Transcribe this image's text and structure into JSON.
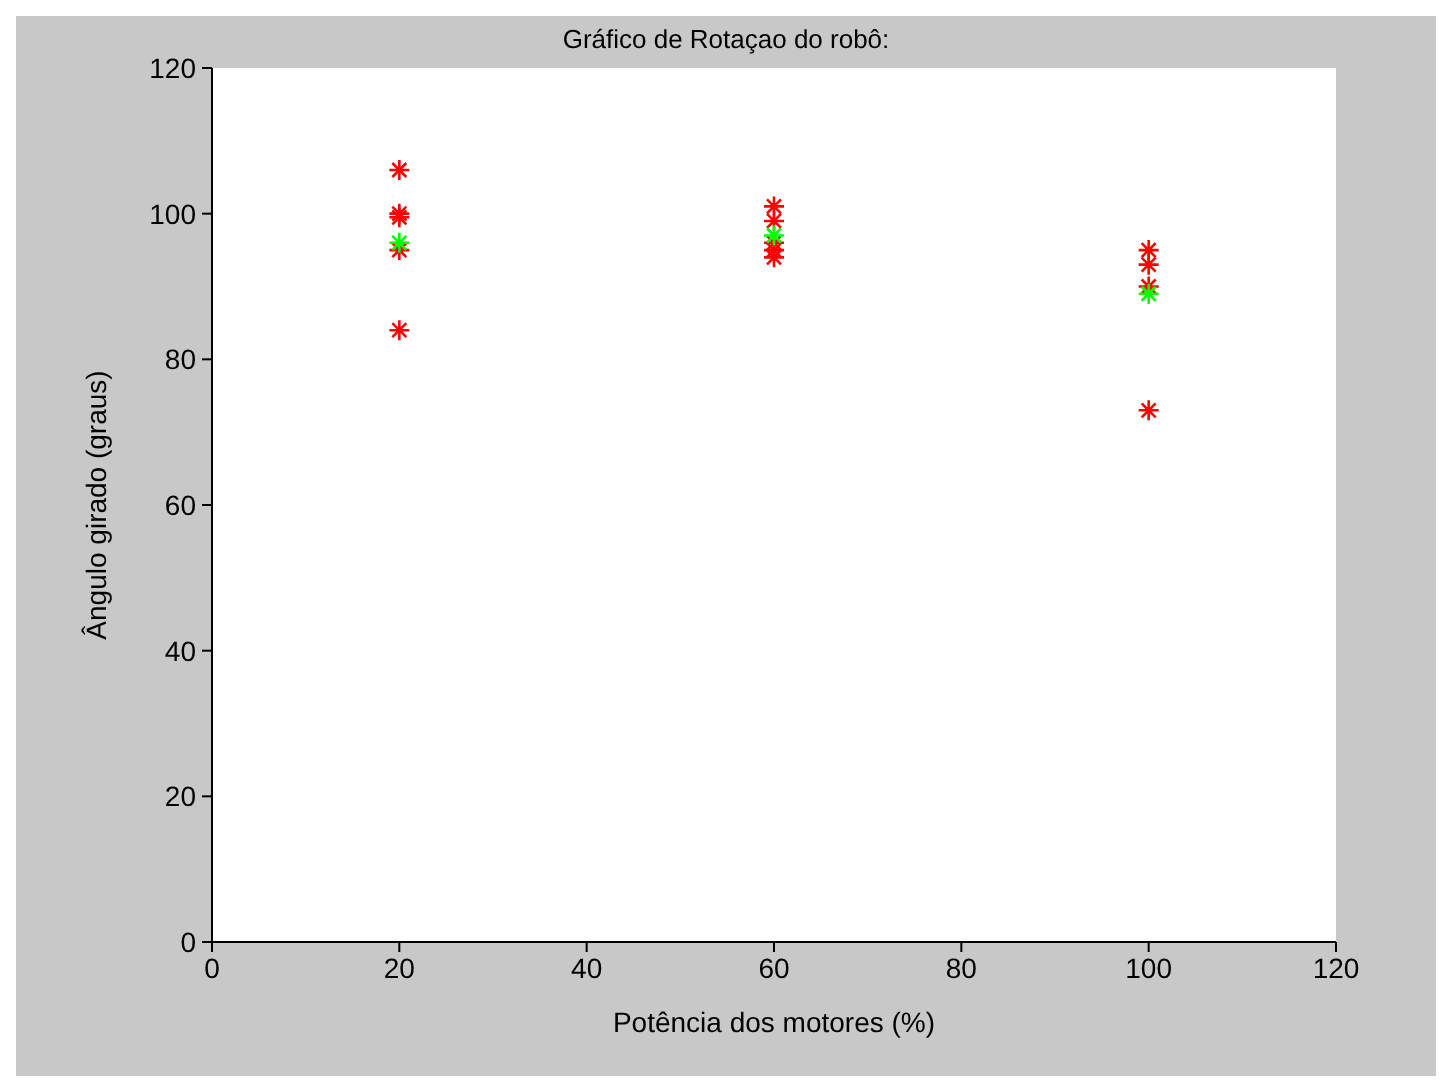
{
  "chart_data": {
    "type": "scatter",
    "title": "Gráfico de Rotaçao do robô:",
    "xlabel": "Potência dos motores (%)",
    "ylabel": "Ângulo girado (graus)",
    "series": [
      {
        "color": "#ff0000",
        "x": [
          20,
          20,
          20,
          20,
          20,
          60,
          60,
          60,
          60,
          60,
          100,
          100,
          100,
          100
        ],
        "values": [
          106,
          100,
          99.5,
          95,
          84,
          101,
          99,
          96,
          95,
          94,
          95,
          93,
          90,
          73
        ]
      },
      {
        "color": "#00ff00",
        "x": [
          20,
          60,
          100
        ],
        "values": [
          96,
          97,
          89
        ]
      }
    ],
    "xlim": [
      0,
      120
    ],
    "xticks": [
      0,
      20,
      40,
      60,
      80,
      100,
      120
    ],
    "ylim": [
      0,
      120
    ],
    "yticks": [
      0,
      20,
      40,
      60,
      80,
      100,
      120
    ],
    "grid": false,
    "legend": false,
    "marker": "cross"
  }
}
